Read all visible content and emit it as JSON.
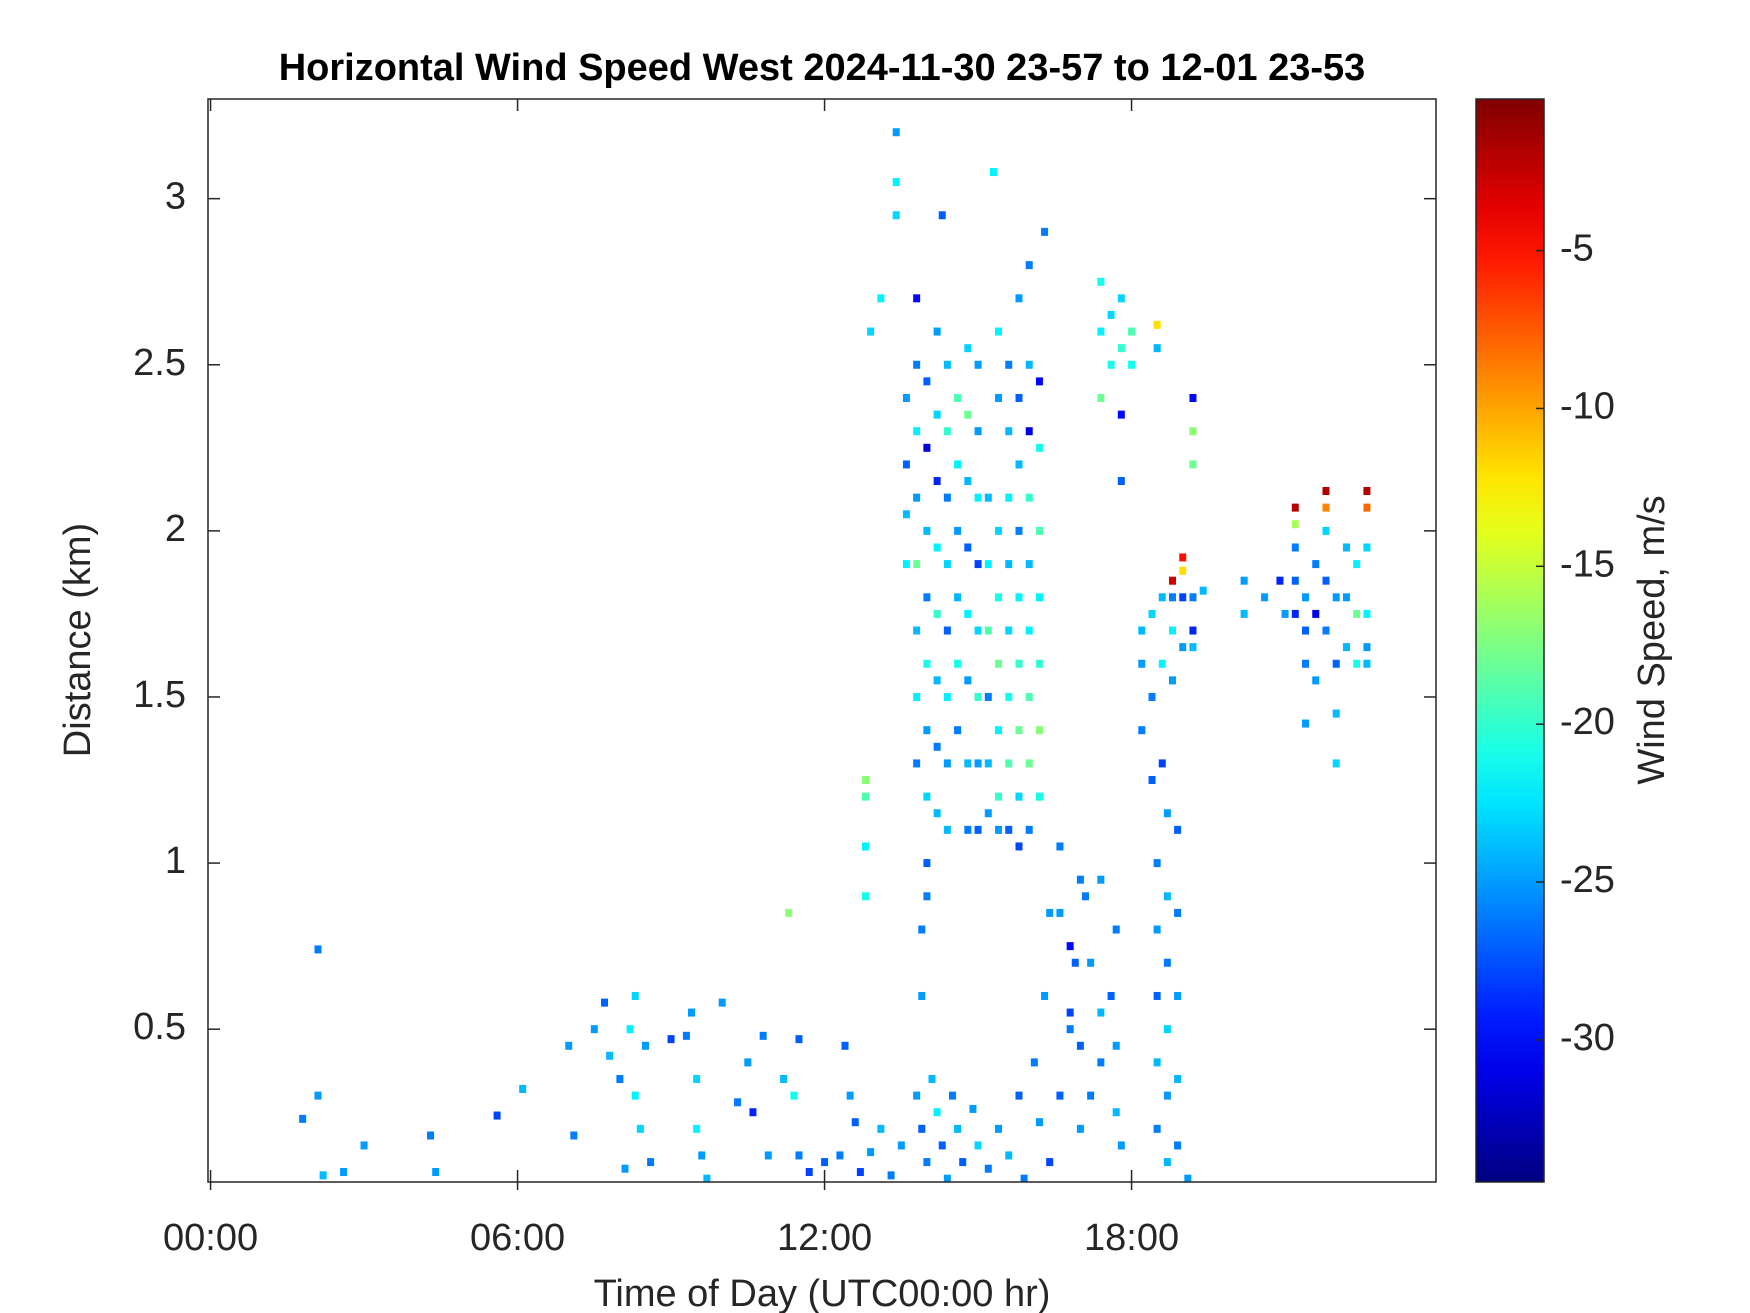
{
  "chart_data": {
    "type": "heatmap",
    "title": "Horizontal Wind Speed West 2024-11-30 23-57 to 12-01 23-53",
    "x_label": "Time of Day (UTC00:00 hr)",
    "y_label": "Distance (km)",
    "xlim": [
      -0.05,
      23.95
    ],
    "xticks": [
      {
        "value": 0,
        "label": "00:00"
      },
      {
        "value": 6,
        "label": "06:00"
      },
      {
        "value": 12,
        "label": "12:00"
      },
      {
        "value": 18,
        "label": "18:00"
      }
    ],
    "ylim": [
      0.04,
      3.3
    ],
    "yticks": [
      0.5,
      1,
      1.5,
      2,
      2.5,
      3
    ],
    "colormap": "jet",
    "colorbar": {
      "label": "Wind Speed, m/s",
      "lim": [
        -34.5,
        -0.2
      ],
      "ticks": [
        -5,
        -10,
        -15,
        -20,
        -25,
        -30
      ]
    },
    "points": [
      [
        2.1,
        0.74,
        -26
      ],
      [
        2.1,
        0.3,
        -25
      ],
      [
        1.8,
        0.23,
        -26
      ],
      [
        2.2,
        0.06,
        -24
      ],
      [
        2.6,
        0.07,
        -25
      ],
      [
        3.0,
        0.15,
        -25
      ],
      [
        4.3,
        0.18,
        -26
      ],
      [
        4.4,
        0.07,
        -25
      ],
      [
        5.6,
        0.24,
        -28
      ],
      [
        6.1,
        0.32,
        -24
      ],
      [
        7.0,
        0.45,
        -25
      ],
      [
        7.1,
        0.18,
        -26
      ],
      [
        7.5,
        0.5,
        -25
      ],
      [
        7.7,
        0.58,
        -27
      ],
      [
        7.8,
        0.42,
        -24
      ],
      [
        8.0,
        0.35,
        -26
      ],
      [
        8.1,
        0.08,
        -25
      ],
      [
        8.2,
        0.5,
        -22
      ],
      [
        8.3,
        0.6,
        -23
      ],
      [
        8.3,
        0.3,
        -22
      ],
      [
        8.4,
        0.2,
        -23
      ],
      [
        8.5,
        0.45,
        -25
      ],
      [
        8.6,
        0.1,
        -26
      ],
      [
        9.0,
        0.47,
        -28
      ],
      [
        9.3,
        0.48,
        -26
      ],
      [
        9.4,
        0.55,
        -25
      ],
      [
        9.5,
        0.35,
        -23
      ],
      [
        9.5,
        0.2,
        -22
      ],
      [
        9.6,
        0.12,
        -25
      ],
      [
        9.7,
        0.05,
        -24
      ],
      [
        10.0,
        0.58,
        -25
      ],
      [
        10.3,
        0.28,
        -26
      ],
      [
        10.5,
        0.4,
        -25
      ],
      [
        10.6,
        0.25,
        -29
      ],
      [
        10.8,
        0.48,
        -26
      ],
      [
        10.9,
        0.12,
        -25
      ],
      [
        11.2,
        0.35,
        -24
      ],
      [
        11.4,
        0.3,
        -21
      ],
      [
        11.5,
        0.47,
        -27
      ],
      [
        11.5,
        0.12,
        -26
      ],
      [
        11.7,
        0.07,
        -28
      ],
      [
        12.0,
        0.1,
        -27
      ],
      [
        12.3,
        0.12,
        -26
      ],
      [
        12.4,
        0.45,
        -27
      ],
      [
        12.5,
        0.3,
        -25
      ],
      [
        12.6,
        0.22,
        -27
      ],
      [
        12.7,
        0.07,
        -28
      ],
      [
        12.9,
        0.13,
        -25
      ],
      [
        13.1,
        0.2,
        -24
      ],
      [
        13.3,
        0.06,
        -26
      ],
      [
        13.5,
        0.15,
        -25
      ],
      [
        13.8,
        0.3,
        -25
      ],
      [
        13.9,
        0.2,
        -27
      ],
      [
        14.0,
        0.1,
        -26
      ],
      [
        14.1,
        0.35,
        -24
      ],
      [
        14.2,
        0.25,
        -22
      ],
      [
        14.3,
        0.15,
        -27
      ],
      [
        14.4,
        0.05,
        -25
      ],
      [
        14.5,
        0.3,
        -26
      ],
      [
        14.6,
        0.2,
        -24
      ],
      [
        14.7,
        0.1,
        -27
      ],
      [
        14.9,
        0.26,
        -25
      ],
      [
        15.0,
        0.15,
        -23
      ],
      [
        15.2,
        0.08,
        -26
      ],
      [
        15.4,
        0.2,
        -25
      ],
      [
        15.6,
        0.12,
        -24
      ],
      [
        15.8,
        0.3,
        -27
      ],
      [
        15.9,
        0.05,
        -26
      ],
      [
        16.1,
        0.4,
        -26
      ],
      [
        16.2,
        0.22,
        -25
      ],
      [
        16.3,
        0.6,
        -25
      ],
      [
        16.4,
        0.1,
        -28
      ],
      [
        16.6,
        0.3,
        -27
      ],
      [
        16.8,
        0.5,
        -26
      ],
      [
        16.9,
        0.7,
        -27
      ],
      [
        17.0,
        0.2,
        -25
      ],
      [
        17.1,
        0.9,
        -26
      ],
      [
        17.4,
        0.4,
        -26
      ],
      [
        17.6,
        0.6,
        -27
      ],
      [
        17.8,
        0.15,
        -25
      ],
      [
        13.6,
        2.4,
        -25
      ],
      [
        13.6,
        2.2,
        -27
      ],
      [
        13.6,
        2.05,
        -24
      ],
      [
        13.6,
        1.9,
        -22
      ],
      [
        13.8,
        2.7,
        -30
      ],
      [
        13.8,
        2.5,
        -26
      ],
      [
        13.8,
        2.3,
        -22
      ],
      [
        13.8,
        2.1,
        -25
      ],
      [
        13.8,
        1.9,
        -18
      ],
      [
        13.8,
        1.7,
        -24
      ],
      [
        13.8,
        1.5,
        -22
      ],
      [
        13.8,
        1.3,
        -26
      ],
      [
        14.0,
        2.45,
        -27
      ],
      [
        14.0,
        2.25,
        -31
      ],
      [
        14.0,
        2.0,
        -24
      ],
      [
        14.0,
        1.8,
        -26
      ],
      [
        14.0,
        1.6,
        -21
      ],
      [
        14.0,
        1.4,
        -25
      ],
      [
        14.0,
        1.2,
        -23
      ],
      [
        14.0,
        1.0,
        -27
      ],
      [
        14.0,
        0.9,
        -26
      ],
      [
        14.2,
        2.6,
        -25
      ],
      [
        14.2,
        2.35,
        -23
      ],
      [
        14.2,
        2.15,
        -29
      ],
      [
        14.2,
        1.95,
        -22
      ],
      [
        14.2,
        1.75,
        -20
      ],
      [
        14.2,
        1.55,
        -24
      ],
      [
        14.2,
        1.35,
        -26
      ],
      [
        14.2,
        1.15,
        -24
      ],
      [
        14.4,
        2.5,
        -24
      ],
      [
        14.4,
        2.3,
        -20
      ],
      [
        14.4,
        2.1,
        -26
      ],
      [
        14.4,
        1.9,
        -23
      ],
      [
        14.4,
        1.7,
        -27
      ],
      [
        14.4,
        1.5,
        -22
      ],
      [
        14.4,
        1.3,
        -25
      ],
      [
        14.4,
        1.1,
        -24
      ],
      [
        14.6,
        2.4,
        -19
      ],
      [
        14.6,
        2.2,
        -22
      ],
      [
        14.6,
        2.0,
        -25
      ],
      [
        14.6,
        1.8,
        -24
      ],
      [
        14.6,
        1.6,
        -21
      ],
      [
        14.6,
        1.4,
        -26
      ],
      [
        14.8,
        2.55,
        -23
      ],
      [
        14.8,
        2.35,
        -18
      ],
      [
        14.8,
        2.15,
        -24
      ],
      [
        14.8,
        1.95,
        -27
      ],
      [
        14.8,
        1.75,
        -22
      ],
      [
        14.8,
        1.55,
        -25
      ],
      [
        14.8,
        1.3,
        -24
      ],
      [
        14.8,
        1.1,
        -26
      ],
      [
        15.0,
        2.3,
        -25
      ],
      [
        15.0,
        2.1,
        -22
      ],
      [
        15.0,
        1.9,
        -28
      ],
      [
        15.0,
        1.7,
        -23
      ],
      [
        15.0,
        1.5,
        -20
      ],
      [
        15.0,
        1.3,
        -25
      ],
      [
        15.0,
        1.1,
        -27
      ],
      [
        15.2,
        2.1,
        -24
      ],
      [
        15.2,
        1.9,
        -22
      ],
      [
        15.2,
        1.7,
        -19
      ],
      [
        15.2,
        1.5,
        -26
      ],
      [
        15.2,
        1.3,
        -24
      ],
      [
        15.2,
        1.15,
        -25
      ],
      [
        15.4,
        2.6,
        -22
      ],
      [
        15.4,
        2.4,
        -25
      ],
      [
        15.4,
        2.0,
        -23
      ],
      [
        15.4,
        1.8,
        -21
      ],
      [
        15.4,
        1.6,
        -18
      ],
      [
        15.4,
        1.4,
        -22
      ],
      [
        15.4,
        1.2,
        -20
      ],
      [
        15.4,
        1.1,
        -25
      ],
      [
        15.6,
        2.5,
        -26
      ],
      [
        15.6,
        2.3,
        -24
      ],
      [
        15.6,
        2.1,
        -22
      ],
      [
        15.6,
        1.9,
        -24
      ],
      [
        15.6,
        1.7,
        -23
      ],
      [
        15.6,
        1.5,
        -21
      ],
      [
        15.6,
        1.3,
        -19
      ],
      [
        15.6,
        1.1,
        -27
      ],
      [
        15.8,
        2.7,
        -25
      ],
      [
        15.8,
        2.4,
        -27
      ],
      [
        15.8,
        2.2,
        -24
      ],
      [
        15.8,
        2.0,
        -26
      ],
      [
        15.8,
        1.8,
        -22
      ],
      [
        15.8,
        1.6,
        -20
      ],
      [
        15.8,
        1.4,
        -18
      ],
      [
        15.8,
        1.2,
        -23
      ],
      [
        15.8,
        1.05,
        -28
      ],
      [
        16.0,
        2.8,
        -26
      ],
      [
        16.0,
        2.5,
        -24
      ],
      [
        16.0,
        2.3,
        -31
      ],
      [
        16.0,
        2.1,
        -20
      ],
      [
        16.0,
        1.9,
        -24
      ],
      [
        16.0,
        1.7,
        -22
      ],
      [
        16.0,
        1.5,
        -19
      ],
      [
        16.0,
        1.3,
        -18
      ],
      [
        16.0,
        1.1,
        -26
      ],
      [
        16.2,
        2.45,
        -30
      ],
      [
        16.2,
        2.25,
        -21
      ],
      [
        16.2,
        2.0,
        -19
      ],
      [
        16.2,
        1.8,
        -22
      ],
      [
        16.2,
        1.6,
        -20
      ],
      [
        16.2,
        1.4,
        -17
      ],
      [
        16.2,
        1.2,
        -21
      ],
      [
        13.4,
        3.2,
        -25
      ],
      [
        13.4,
        3.05,
        -22
      ],
      [
        13.4,
        2.95,
        -23
      ],
      [
        14.3,
        2.95,
        -27
      ],
      [
        15.3,
        3.08,
        -22
      ],
      [
        16.3,
        2.9,
        -26
      ],
      [
        15.0,
        2.5,
        -25
      ],
      [
        12.9,
        2.6,
        -23
      ],
      [
        13.1,
        2.7,
        -22
      ],
      [
        12.8,
        1.25,
        -17
      ],
      [
        12.8,
        1.2,
        -19
      ],
      [
        12.8,
        1.05,
        -22
      ],
      [
        12.8,
        0.9,
        -21
      ],
      [
        11.3,
        0.85,
        -17
      ],
      [
        13.9,
        0.8,
        -26
      ],
      [
        13.9,
        0.6,
        -25
      ],
      [
        17.4,
        2.75,
        -21
      ],
      [
        17.4,
        2.6,
        -22
      ],
      [
        17.4,
        2.4,
        -18
      ],
      [
        17.6,
        2.65,
        -23
      ],
      [
        17.6,
        2.5,
        -21
      ],
      [
        17.8,
        2.7,
        -23
      ],
      [
        17.8,
        2.55,
        -20
      ],
      [
        17.8,
        2.35,
        -30
      ],
      [
        17.8,
        2.15,
        -27
      ],
      [
        18.0,
        2.6,
        -19
      ],
      [
        18.0,
        2.5,
        -21
      ],
      [
        18.5,
        2.62,
        -12
      ],
      [
        18.5,
        2.55,
        -24
      ],
      [
        19.2,
        2.4,
        -30
      ],
      [
        19.2,
        2.2,
        -18
      ],
      [
        19.2,
        2.3,
        -17
      ],
      [
        18.2,
        1.6,
        -25
      ],
      [
        18.2,
        1.4,
        -26
      ],
      [
        18.2,
        1.7,
        -24
      ],
      [
        18.4,
        1.75,
        -23
      ],
      [
        18.4,
        1.5,
        -26
      ],
      [
        18.4,
        1.25,
        -27
      ],
      [
        18.6,
        1.8,
        -24
      ],
      [
        18.6,
        1.6,
        -22
      ],
      [
        18.6,
        1.3,
        -28
      ],
      [
        18.8,
        1.85,
        -3
      ],
      [
        18.8,
        1.8,
        -26
      ],
      [
        18.8,
        1.7,
        -22
      ],
      [
        18.8,
        1.55,
        -25
      ],
      [
        19.0,
        1.92,
        -5
      ],
      [
        19.0,
        1.88,
        -12
      ],
      [
        19.0,
        1.8,
        -28
      ],
      [
        19.0,
        1.65,
        -25
      ],
      [
        19.2,
        1.8,
        -26
      ],
      [
        19.2,
        1.7,
        -29
      ],
      [
        19.2,
        1.65,
        -24
      ],
      [
        19.4,
        1.82,
        -24
      ],
      [
        18.5,
        1.0,
        -26
      ],
      [
        18.5,
        0.8,
        -25
      ],
      [
        18.5,
        0.6,
        -27
      ],
      [
        18.5,
        0.4,
        -24
      ],
      [
        18.5,
        0.2,
        -26
      ],
      [
        18.7,
        1.15,
        -25
      ],
      [
        18.7,
        0.9,
        -24
      ],
      [
        18.7,
        0.7,
        -26
      ],
      [
        18.7,
        0.5,
        -23
      ],
      [
        18.7,
        0.3,
        -25
      ],
      [
        18.7,
        0.1,
        -24
      ],
      [
        18.9,
        1.1,
        -27
      ],
      [
        18.9,
        0.85,
        -26
      ],
      [
        18.9,
        0.6,
        -25
      ],
      [
        18.9,
        0.35,
        -24
      ],
      [
        18.9,
        0.15,
        -26
      ],
      [
        19.1,
        0.05,
        -25
      ],
      [
        20.2,
        1.85,
        -25
      ],
      [
        20.2,
        1.75,
        -24
      ],
      [
        20.6,
        1.8,
        -25
      ],
      [
        20.9,
        1.85,
        -29
      ],
      [
        21.0,
        1.75,
        -25
      ],
      [
        21.2,
        2.07,
        -2
      ],
      [
        21.2,
        2.02,
        -16
      ],
      [
        21.2,
        1.95,
        -26
      ],
      [
        21.2,
        1.85,
        -27
      ],
      [
        21.2,
        1.75,
        -29
      ],
      [
        21.4,
        1.8,
        -25
      ],
      [
        21.4,
        1.7,
        -27
      ],
      [
        21.4,
        1.6,
        -26
      ],
      [
        21.4,
        1.42,
        -25
      ],
      [
        21.6,
        1.9,
        -26
      ],
      [
        21.6,
        1.75,
        -31
      ],
      [
        21.6,
        1.55,
        -25
      ],
      [
        21.8,
        2.12,
        -2
      ],
      [
        21.8,
        2.07,
        -9
      ],
      [
        21.8,
        2.0,
        -23
      ],
      [
        21.8,
        1.85,
        -27
      ],
      [
        21.8,
        1.7,
        -26
      ],
      [
        22.0,
        1.8,
        -25
      ],
      [
        22.0,
        1.6,
        -27
      ],
      [
        22.0,
        1.45,
        -24
      ],
      [
        22.0,
        1.3,
        -23
      ],
      [
        22.2,
        1.95,
        -24
      ],
      [
        22.2,
        1.8,
        -25
      ],
      [
        22.2,
        1.65,
        -24
      ],
      [
        22.4,
        1.9,
        -22
      ],
      [
        22.4,
        1.75,
        -18
      ],
      [
        22.4,
        1.6,
        -21
      ],
      [
        22.6,
        2.12,
        -2
      ],
      [
        22.6,
        2.07,
        -8
      ],
      [
        22.6,
        1.95,
        -23
      ],
      [
        22.6,
        1.75,
        -22
      ],
      [
        22.6,
        1.65,
        -25
      ],
      [
        22.6,
        1.6,
        -24
      ],
      [
        16.6,
        1.05,
        -26
      ],
      [
        16.6,
        0.85,
        -25
      ],
      [
        16.8,
        0.75,
        -30
      ],
      [
        16.8,
        0.55,
        -28
      ],
      [
        17.0,
        0.95,
        -26
      ],
      [
        17.0,
        0.45,
        -27
      ],
      [
        17.2,
        0.7,
        -25
      ],
      [
        17.2,
        0.3,
        -26
      ],
      [
        17.4,
        0.95,
        -25
      ],
      [
        17.4,
        0.55,
        -24
      ],
      [
        17.7,
        0.8,
        -26
      ],
      [
        17.7,
        0.45,
        -25
      ],
      [
        17.7,
        0.25,
        -24
      ],
      [
        16.4,
        0.85,
        -25
      ]
    ]
  }
}
